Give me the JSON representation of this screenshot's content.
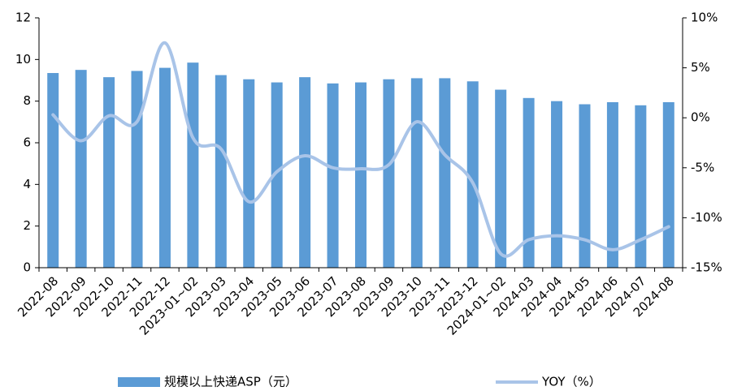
{
  "chart_data": {
    "type": "bar-line",
    "categories": [
      "2022-08",
      "2022-09",
      "2022-10",
      "2022-11",
      "2022-12",
      "2023-01~02",
      "2023-03",
      "2023-04",
      "2023-05",
      "2023-06",
      "2023-07",
      "2023-08",
      "2023-09",
      "2023-10",
      "2023-11",
      "2023-12",
      "2024-01~02",
      "2024-03",
      "2024-04",
      "2024-05",
      "2024-06",
      "2024-07",
      "2024-08"
    ],
    "series": [
      {
        "name": "规模以上快递ASP（元）",
        "color": "#5b9bd5",
        "type": "bar",
        "values": [
          9.35,
          9.5,
          9.15,
          9.45,
          9.6,
          9.85,
          9.25,
          9.05,
          8.9,
          9.15,
          8.85,
          8.9,
          9.05,
          9.1,
          9.1,
          8.95,
          8.55,
          8.15,
          8.0,
          7.85,
          7.95,
          7.8,
          7.95
        ]
      },
      {
        "name": "YOY（%）",
        "color": "#a9c4e8",
        "type": "line",
        "axis": "y2",
        "values": [
          0.3,
          -2.3,
          0.2,
          -0.4,
          7.5,
          -2.0,
          -3.1,
          -8.4,
          -5.4,
          -3.8,
          -5.0,
          -5.1,
          -4.7,
          -0.4,
          -3.7,
          -6.5,
          -13.6,
          -12.2,
          -11.8,
          -12.2,
          -13.2,
          -12.2,
          -10.9
        ]
      }
    ],
    "ylim": [
      0,
      12
    ],
    "yticks": [
      0,
      2,
      4,
      6,
      8,
      10,
      12
    ],
    "y2lim": [
      -15,
      10
    ],
    "y2ticks": [
      {
        "value": -15,
        "label": "-15%"
      },
      {
        "value": -10,
        "label": "-10%"
      },
      {
        "value": -5,
        "label": "-5%"
      },
      {
        "value": 0,
        "label": "0%"
      },
      {
        "value": 5,
        "label": "5%"
      },
      {
        "value": 10,
        "label": "10%"
      }
    ]
  }
}
